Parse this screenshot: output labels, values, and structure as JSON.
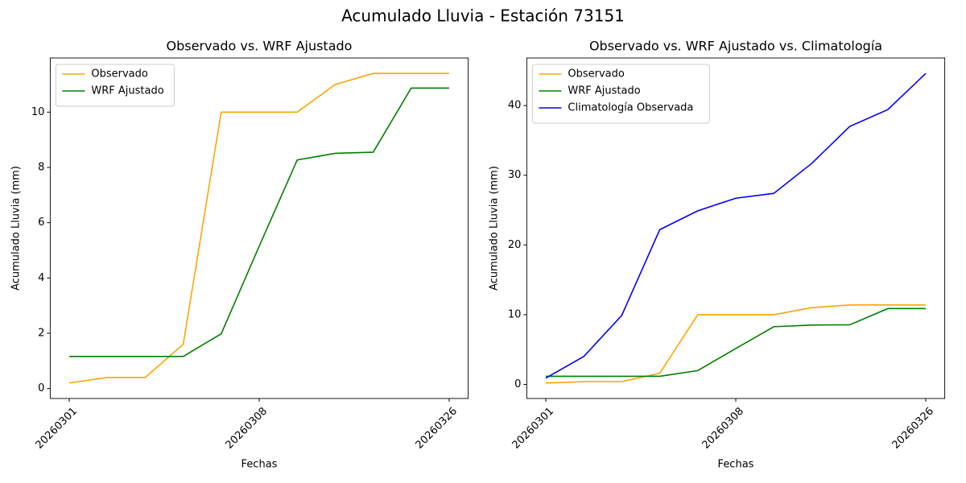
{
  "title": "Acumulado Lluvia - Estación 73151",
  "chart_data": [
    {
      "type": "line",
      "title": "Observado vs. WRF Ajustado",
      "xlabel": "Fechas",
      "ylabel": "Acumulado Lluvia (mm)",
      "categories": [
        "20260301",
        null,
        null,
        null,
        null,
        "20260308",
        null,
        null,
        null,
        null,
        "20260326"
      ],
      "series": [
        {
          "name": "Observado",
          "color": "orange",
          "values": [
            0.2,
            0.4,
            0.4,
            1.6,
            10.0,
            10.0,
            10.0,
            11.0,
            11.4,
            11.4,
            11.4
          ]
        },
        {
          "name": "WRF Ajustado",
          "color": "green",
          "values": [
            1.16,
            1.16,
            1.16,
            1.16,
            1.98,
            5.15,
            8.27,
            8.51,
            8.55,
            10.87,
            10.87
          ]
        }
      ],
      "ylim": [
        -0.36,
        11.96
      ],
      "yticks": [
        0,
        2,
        4,
        6,
        8,
        10
      ],
      "legend": "upper left"
    },
    {
      "type": "line",
      "title": "Observado vs. WRF Ajustado vs. Climatología",
      "xlabel": "Fechas",
      "ylabel": "Acumulado Lluvia (mm)",
      "categories": [
        "20260301",
        null,
        null,
        null,
        null,
        "20260308",
        null,
        null,
        null,
        null,
        "20260326"
      ],
      "series": [
        {
          "name": "Observado",
          "color": "orange",
          "values": [
            0.2,
            0.4,
            0.4,
            1.6,
            10.0,
            10.0,
            10.0,
            11.0,
            11.4,
            11.4,
            11.4
          ]
        },
        {
          "name": "WRF Ajustado",
          "color": "green",
          "values": [
            1.16,
            1.16,
            1.16,
            1.16,
            1.98,
            5.15,
            8.27,
            8.51,
            8.55,
            10.87,
            10.87
          ]
        },
        {
          "name": "Climatología Observada",
          "color": "blue",
          "values": [
            0.9,
            4.0,
            9.9,
            22.2,
            24.9,
            26.7,
            27.4,
            31.7,
            37.0,
            39.4,
            44.6
          ]
        }
      ],
      "ylim": [
        -2.02,
        46.82
      ],
      "yticks": [
        0,
        10,
        20,
        30,
        40
      ],
      "legend": "upper left"
    }
  ]
}
